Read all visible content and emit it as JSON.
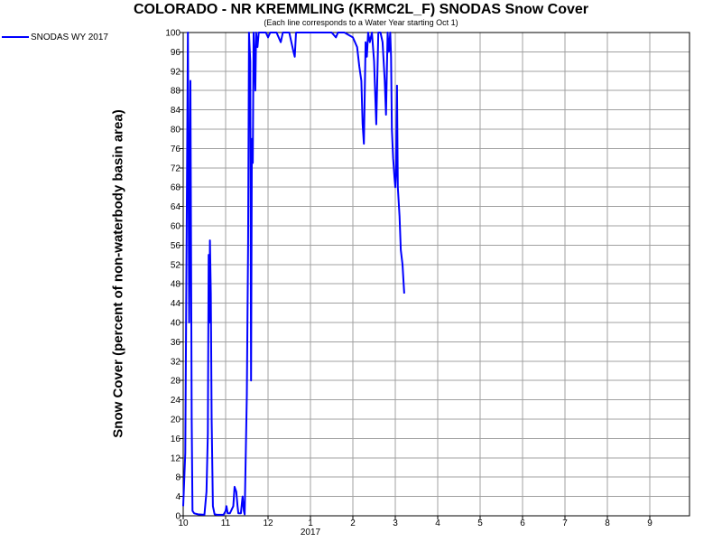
{
  "chart_data": {
    "type": "line",
    "title": "COLORADO - NR KREMMLING (KRMC2L_F) SNODAS Snow Cover",
    "subtitle": "(Each line corresponds to a Water Year starting Oct 1)",
    "ylabel": "Snow Cover (percent of non-waterbody basin area)",
    "xlabel": "",
    "ylim": [
      0,
      100
    ],
    "y_ticks": [
      0,
      4,
      8,
      12,
      16,
      20,
      24,
      28,
      32,
      36,
      40,
      44,
      48,
      52,
      56,
      60,
      64,
      68,
      72,
      76,
      80,
      84,
      88,
      92,
      96,
      100
    ],
    "xlim": [
      0,
      12
    ],
    "x_ticks": [
      {
        "x": 0,
        "label": "10"
      },
      {
        "x": 1,
        "label": "11"
      },
      {
        "x": 2,
        "label": "12"
      },
      {
        "x": 3,
        "label": "1"
      },
      {
        "x": 4,
        "label": "2"
      },
      {
        "x": 5,
        "label": "3"
      },
      {
        "x": 6,
        "label": "4"
      },
      {
        "x": 7,
        "label": "5"
      },
      {
        "x": 8,
        "label": "6"
      },
      {
        "x": 9,
        "label": "7"
      },
      {
        "x": 10,
        "label": "8"
      },
      {
        "x": 11,
        "label": "9"
      }
    ],
    "year_label": {
      "x": 3,
      "label": "2017"
    },
    "grid": true,
    "legend_position": "top-left",
    "series": [
      {
        "name": "SNODAS WY 2017",
        "color": "#0000ff",
        "points": [
          [
            0.0,
            2
          ],
          [
            0.05,
            13
          ],
          [
            0.11,
            100
          ],
          [
            0.14,
            40
          ],
          [
            0.17,
            90
          ],
          [
            0.2,
            20
          ],
          [
            0.22,
            1
          ],
          [
            0.26,
            0.5
          ],
          [
            0.35,
            0.3
          ],
          [
            0.5,
            0.2
          ],
          [
            0.55,
            5
          ],
          [
            0.58,
            17
          ],
          [
            0.6,
            54
          ],
          [
            0.62,
            40
          ],
          [
            0.63,
            57
          ],
          [
            0.65,
            46
          ],
          [
            0.67,
            20
          ],
          [
            0.7,
            2
          ],
          [
            0.74,
            0.3
          ],
          [
            0.8,
            0.2
          ],
          [
            0.95,
            0.2
          ],
          [
            1.0,
            1
          ],
          [
            1.02,
            2
          ],
          [
            1.05,
            0.5
          ],
          [
            1.1,
            0.5
          ],
          [
            1.18,
            2
          ],
          [
            1.21,
            6
          ],
          [
            1.25,
            5
          ],
          [
            1.28,
            2
          ],
          [
            1.3,
            0.5
          ],
          [
            1.36,
            0.5
          ],
          [
            1.4,
            4
          ],
          [
            1.43,
            1
          ],
          [
            1.45,
            0.3
          ],
          [
            1.5,
            25
          ],
          [
            1.53,
            56
          ],
          [
            1.55,
            100
          ],
          [
            1.58,
            94
          ],
          [
            1.6,
            28
          ],
          [
            1.62,
            78
          ],
          [
            1.64,
            73
          ],
          [
            1.66,
            100
          ],
          [
            1.68,
            95
          ],
          [
            1.7,
            88
          ],
          [
            1.72,
            100
          ],
          [
            1.75,
            97
          ],
          [
            1.78,
            100
          ],
          [
            1.9,
            100
          ],
          [
            1.95,
            100
          ],
          [
            2.0,
            99
          ],
          [
            2.05,
            100
          ],
          [
            2.2,
            100
          ],
          [
            2.3,
            98
          ],
          [
            2.35,
            100
          ],
          [
            2.5,
            100
          ],
          [
            2.6,
            96
          ],
          [
            2.63,
            95
          ],
          [
            2.66,
            100
          ],
          [
            2.8,
            100
          ],
          [
            3.0,
            100
          ],
          [
            3.2,
            100
          ],
          [
            3.5,
            100
          ],
          [
            3.6,
            99
          ],
          [
            3.65,
            100
          ],
          [
            3.8,
            100
          ],
          [
            4.0,
            99
          ],
          [
            4.1,
            97
          ],
          [
            4.15,
            93
          ],
          [
            4.2,
            90
          ],
          [
            4.23,
            81
          ],
          [
            4.26,
            77
          ],
          [
            4.3,
            98
          ],
          [
            4.33,
            95
          ],
          [
            4.36,
            100
          ],
          [
            4.4,
            98
          ],
          [
            4.45,
            100
          ],
          [
            4.5,
            94
          ],
          [
            4.55,
            81
          ],
          [
            4.6,
            100
          ],
          [
            4.65,
            100
          ],
          [
            4.7,
            98
          ],
          [
            4.75,
            90
          ],
          [
            4.78,
            83
          ],
          [
            4.82,
            100
          ],
          [
            4.85,
            96
          ],
          [
            4.88,
            100
          ],
          [
            4.9,
            95
          ],
          [
            4.92,
            80
          ],
          [
            4.95,
            74
          ],
          [
            4.98,
            70
          ],
          [
            5.0,
            68
          ],
          [
            5.02,
            71
          ],
          [
            5.04,
            89
          ],
          [
            5.06,
            68
          ],
          [
            5.1,
            62
          ],
          [
            5.13,
            55
          ],
          [
            5.17,
            52
          ],
          [
            5.21,
            46
          ]
        ]
      }
    ]
  }
}
